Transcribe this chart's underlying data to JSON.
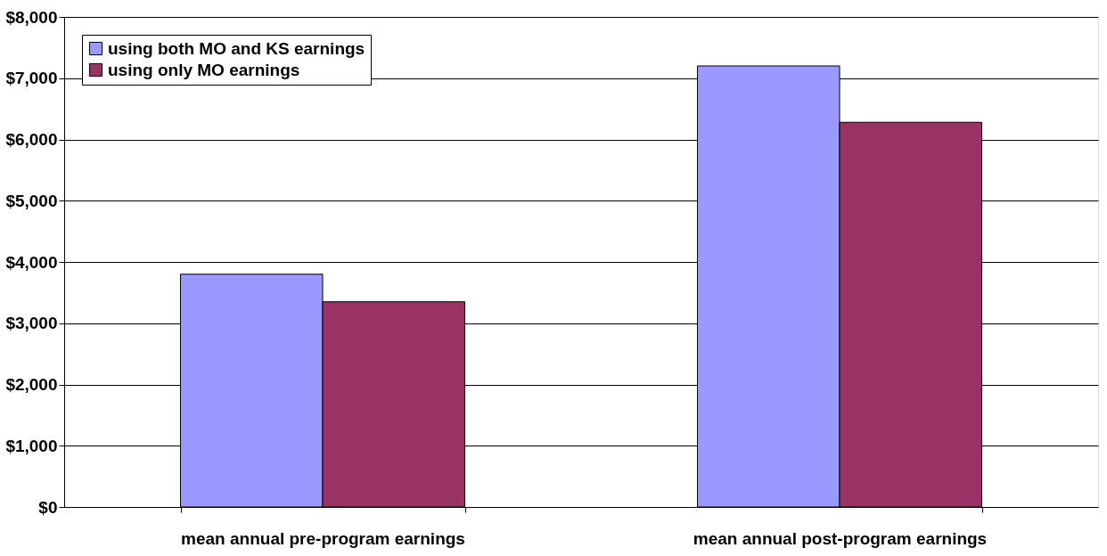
{
  "chart_data": {
    "type": "bar",
    "categories": [
      "mean annual pre-program earnings",
      "mean annual post-program earnings"
    ],
    "series": [
      {
        "name": "using both MO and KS earnings",
        "color": "#9999ff",
        "values": [
          3800,
          7200
        ]
      },
      {
        "name": "using only MO earnings",
        "color": "#993366",
        "values": [
          3350,
          6280
        ]
      }
    ],
    "ylim": [
      0,
      8000
    ],
    "yticks": [
      {
        "value": 0,
        "label": "$0"
      },
      {
        "value": 1000,
        "label": "$1,000"
      },
      {
        "value": 2000,
        "label": "$2,000"
      },
      {
        "value": 3000,
        "label": "$3,000"
      },
      {
        "value": 4000,
        "label": "$4,000"
      },
      {
        "value": 5000,
        "label": "$5,000"
      },
      {
        "value": 6000,
        "label": "$6,000"
      },
      {
        "value": 7000,
        "label": "$7,000"
      },
      {
        "value": 8000,
        "label": "$8,000"
      }
    ],
    "grid": "y",
    "legend": "top left"
  }
}
